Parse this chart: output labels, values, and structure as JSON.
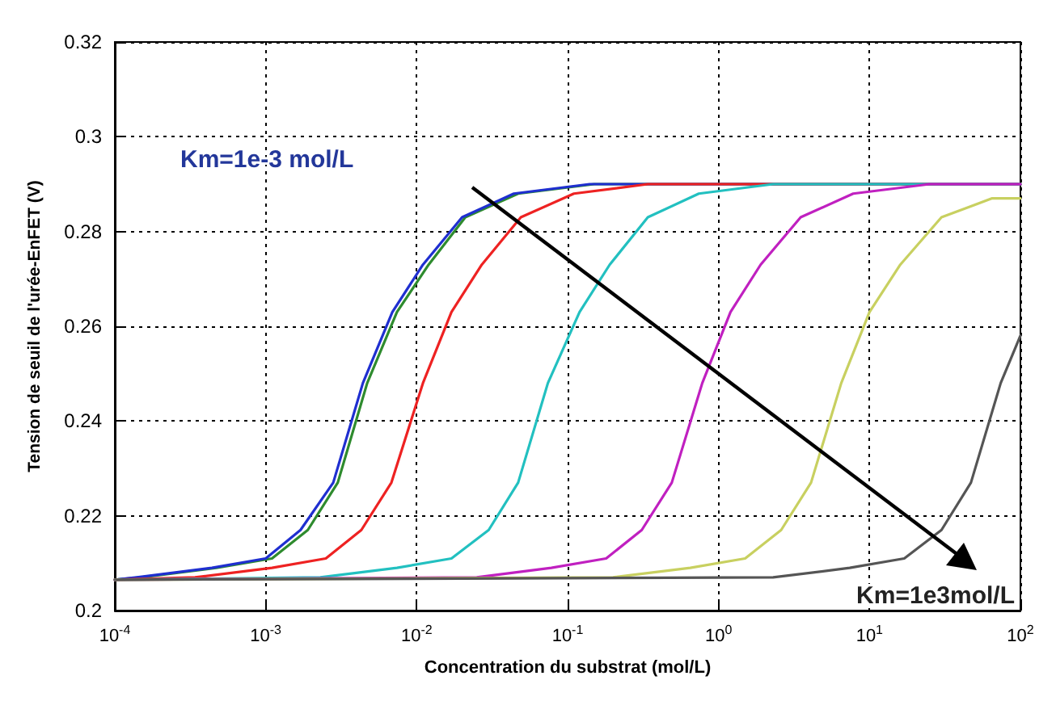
{
  "chart_data": {
    "type": "line",
    "xlabel": "Concentration du substrat (mol/L)",
    "ylabel": "Tension de seuil de l'urée-EnFET (V)",
    "log": "x",
    "grid": true,
    "line_style": "solid",
    "marker": "none",
    "xlim": [
      0.0001,
      100
    ],
    "xticks": [
      {
        "value": 0.0001,
        "label": "10$^{-4}$"
      },
      {
        "value": 0.001,
        "label": "10$^{-3}$"
      },
      {
        "value": 0.01,
        "label": "10$^{-2}$"
      },
      {
        "value": 0.1,
        "label": "10$^{-1}$"
      },
      {
        "value": 1,
        "label": "10$^{0}$"
      },
      {
        "value": 10,
        "label": "10$^{1}$"
      },
      {
        "value": 100,
        "label": "10$^{2}$"
      }
    ],
    "ylim": [
      0.2,
      0.32
    ],
    "yticks": [
      0.2,
      0.22,
      0.24,
      0.26,
      0.28,
      0.3,
      0.32
    ],
    "series": [
      {
        "color": "#2e8b2e",
        "x": [
          0.0001,
          0.00015,
          0.00047,
          0.0011,
          0.0019,
          0.003,
          0.0047,
          0.0074,
          0.012,
          0.021,
          0.047,
          0.15,
          100
        ],
        "values": [
          0.2065,
          0.207,
          0.209,
          0.211,
          0.217,
          0.227,
          0.248,
          0.263,
          0.273,
          0.283,
          0.288,
          0.29,
          0.29
        ]
      },
      {
        "color": "#1f2fd0",
        "x": [
          0.0001,
          0.00014,
          0.00044,
          0.001,
          0.0017,
          0.0028,
          0.0044,
          0.0069,
          0.011,
          0.02,
          0.044,
          0.14,
          100
        ],
        "values": [
          0.2065,
          0.207,
          0.209,
          0.211,
          0.217,
          0.227,
          0.248,
          0.263,
          0.273,
          0.283,
          0.288,
          0.29,
          0.29
        ]
      },
      {
        "color": "#ee2222",
        "x": [
          0.0001,
          0.00034,
          0.0011,
          0.0025,
          0.0043,
          0.0068,
          0.011,
          0.017,
          0.027,
          0.049,
          0.11,
          0.34,
          100
        ],
        "values": [
          0.2065,
          0.207,
          0.209,
          0.211,
          0.217,
          0.227,
          0.248,
          0.263,
          0.273,
          0.283,
          0.288,
          0.29,
          0.29
        ]
      },
      {
        "color": "#22c0c0",
        "x": [
          0.0001,
          0.0023,
          0.0074,
          0.017,
          0.03,
          0.047,
          0.074,
          0.12,
          0.19,
          0.34,
          0.74,
          2.3,
          100
        ],
        "values": [
          0.2065,
          0.207,
          0.209,
          0.211,
          0.217,
          0.227,
          0.248,
          0.263,
          0.273,
          0.283,
          0.288,
          0.29,
          0.29
        ]
      },
      {
        "color": "#c020c0",
        "x": [
          0.0001,
          0.025,
          0.078,
          0.18,
          0.31,
          0.49,
          0.78,
          1.2,
          1.9,
          3.5,
          7.8,
          25,
          100
        ],
        "values": [
          0.2065,
          0.207,
          0.209,
          0.211,
          0.217,
          0.227,
          0.248,
          0.263,
          0.273,
          0.283,
          0.288,
          0.29,
          0.29
        ]
      },
      {
        "color": "#c8d060",
        "x": [
          0.0001,
          0.2,
          0.65,
          1.5,
          2.6,
          4.1,
          6.5,
          10,
          16,
          30,
          65,
          100
        ],
        "values": [
          0.2065,
          0.207,
          0.209,
          0.211,
          0.217,
          0.227,
          0.248,
          0.263,
          0.273,
          0.283,
          0.287,
          0.287
        ]
      },
      {
        "color": "#555555",
        "x": [
          0.0001,
          2.3,
          7.4,
          17,
          30,
          47,
          74,
          100
        ],
        "values": [
          0.2065,
          0.207,
          0.209,
          0.211,
          0.217,
          0.227,
          0.248,
          0.258
        ]
      }
    ],
    "annotations": [
      "Km=1e-3 mol/L",
      "Km=1e3mol/L"
    ]
  }
}
